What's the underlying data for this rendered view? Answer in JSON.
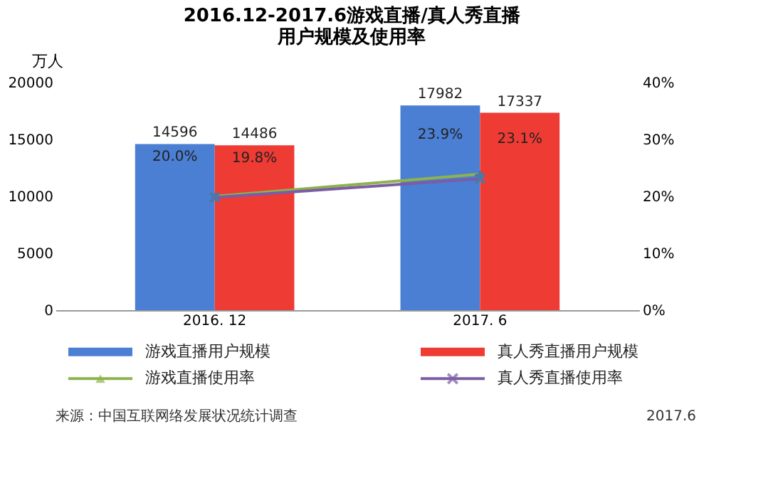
{
  "chart_data": {
    "type": "bar",
    "title": [
      "2016.12-2017.6游戏直播/真人秀直播",
      "用户规模及使用率"
    ],
    "ylabel": "万人",
    "categories": [
      "2016. 12",
      "2017. 6"
    ],
    "series": [
      {
        "name": "游戏直播用户规模",
        "color": "#4a7fd4",
        "values": [
          14596,
          17982
        ]
      },
      {
        "name": "真人秀直播用户规模",
        "color": "#ee3b34",
        "values": [
          14486,
          17337
        ]
      },
      {
        "name": "游戏直播使用率",
        "color": "#8db24e",
        "values": [
          20.0,
          23.9
        ],
        "type": "line",
        "axis": "y2",
        "marker": "triangle",
        "value_labels": [
          "20.0%",
          "23.9%"
        ]
      },
      {
        "name": "真人秀直播使用率",
        "color": "#7b5ca5",
        "values": [
          19.8,
          23.1
        ],
        "type": "line",
        "axis": "y2",
        "marker": "cross",
        "value_labels": [
          "19.8%",
          "23.1%"
        ]
      }
    ],
    "ylim": [
      0,
      20000
    ],
    "yticks": [
      0,
      5000,
      10000,
      15000,
      20000
    ],
    "y2lim": [
      0,
      40
    ],
    "y2ticks": [
      {
        "value": 0,
        "label": "0%"
      },
      {
        "value": 10,
        "label": "10%"
      },
      {
        "value": 20,
        "label": "20%"
      },
      {
        "value": 30,
        "label": "30%"
      },
      {
        "value": 40,
        "label": "40%"
      }
    ],
    "data_labels": true,
    "grid": false,
    "legend": "bottom",
    "annotations": [
      "来源：中国互联网络发展状况统计调查",
      "2017.6"
    ]
  }
}
